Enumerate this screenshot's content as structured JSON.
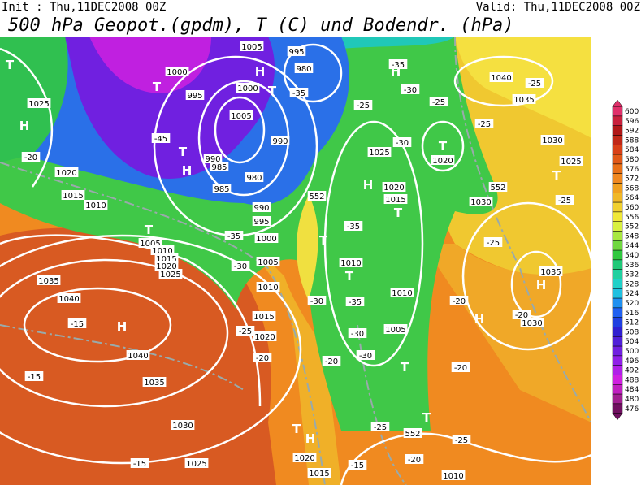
{
  "header": {
    "init": "Init : Thu,11DEC2008 00Z",
    "valid": "Valid: Thu,11DEC2008 00Z",
    "title": "500 hPa Geopot.(gpdm), T (C) und Bodendr. (hPa)"
  },
  "colorbar": {
    "labels": [
      600,
      596,
      592,
      588,
      584,
      580,
      576,
      572,
      568,
      564,
      560,
      556,
      552,
      548,
      544,
      540,
      536,
      532,
      528,
      524,
      520,
      516,
      512,
      508,
      504,
      500,
      496,
      492,
      488,
      484,
      480,
      476
    ]
  },
  "map": {
    "labels": [
      "T",
      "1025",
      "H",
      "-20",
      "1020",
      "1015",
      "1010",
      "T",
      "1005",
      "1010",
      "1015",
      "1020",
      "1025",
      "1035",
      "1040",
      "-15",
      "H",
      "1040",
      "-15",
      "1035",
      "1030",
      "1025",
      "-15",
      "1000",
      "T",
      "995",
      "-45",
      "T",
      "990",
      "985",
      "H",
      "985",
      "1005",
      "995",
      "980",
      "H",
      "1000",
      "T",
      "-35",
      "1005",
      "990",
      "980",
      "990",
      "995",
      "1000",
      "-35",
      "1005",
      "-30",
      "1010",
      "1015",
      "1020",
      "-25",
      "-20",
      "552",
      "-25",
      "1025",
      "H",
      "1020",
      "1015",
      "T",
      "T",
      "-35",
      "1010",
      "T",
      "-35",
      "-30",
      "1010",
      "1005",
      "-30",
      "-30",
      "T",
      "-20",
      "-25",
      "552",
      "-20",
      "1010",
      "-15",
      "H",
      "T",
      "1020",
      "1015",
      "-35",
      "H",
      "-30",
      "-25",
      "T",
      "1020",
      "-30",
      "-25",
      "1040",
      "-25",
      "1035",
      "1030",
      "T",
      "1025",
      "552",
      "1030",
      "-25",
      "-25",
      "1035",
      "H",
      "H",
      "-20",
      "1030",
      "-20",
      "-25",
      "T",
      "-20"
    ]
  }
}
